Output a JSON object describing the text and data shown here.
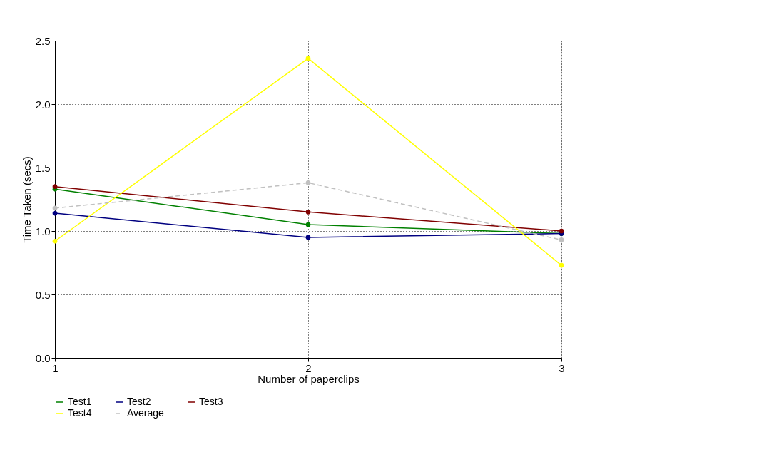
{
  "chart_data": {
    "type": "line",
    "xlabel": "Number of paperclips",
    "ylabel": "Time Taken (secs)",
    "x": [
      1,
      2,
      3
    ],
    "series": [
      {
        "name": "Test1",
        "color": "#008000",
        "values": [
          1.33,
          1.05,
          0.98
        ]
      },
      {
        "name": "Test2",
        "color": "#000080",
        "values": [
          1.14,
          0.95,
          0.98
        ]
      },
      {
        "name": "Test3",
        "color": "#800000",
        "values": [
          1.35,
          1.15,
          1.0
        ]
      },
      {
        "name": "Test4",
        "color": "#ffff00",
        "values": [
          0.92,
          2.36,
          0.73
        ]
      },
      {
        "name": "Average",
        "color": "#c0c0c0",
        "values": [
          1.18,
          1.38,
          0.93
        ],
        "line_style": "dashed"
      }
    ],
    "xlim": [
      1,
      3
    ],
    "xticks": [
      1,
      2,
      3
    ],
    "ylim": [
      0,
      2.5
    ],
    "yticks": [
      {
        "value": 0,
        "label": "0.0"
      },
      {
        "value": 0.5,
        "label": "0.5"
      },
      {
        "value": 1,
        "label": "1.0"
      },
      {
        "value": 1.5,
        "label": "1.5"
      },
      {
        "value": 2,
        "label": "2.0"
      },
      {
        "value": 2.5,
        "label": "2.5"
      }
    ],
    "grid": true,
    "legend": "bottom",
    "marker": "circle",
    "line_style": "solid"
  }
}
